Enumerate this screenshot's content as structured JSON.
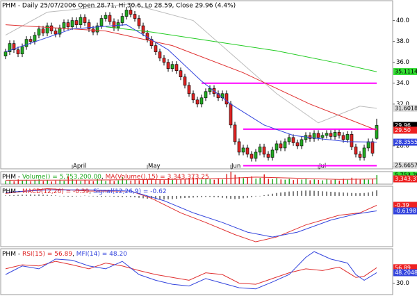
{
  "chart_data": [
    {
      "type": "candlestick",
      "title": "PHM - Daily 25/07/2006 Open 28.71, Hi 30.6, Lo 28.59, Close 29.96 (4.4%)",
      "x_labels": [
        {
          "index": 16,
          "label": "April"
        },
        {
          "index": 34,
          "label": "May"
        },
        {
          "index": 54,
          "label": "Jun"
        },
        {
          "index": 75,
          "label": "Jul"
        }
      ],
      "up_color": "#22aa22",
      "down_color": "#dd2222",
      "ylim": [
        25.8,
        41.9
      ],
      "yticks": [
        {
          "value": 40,
          "label": "40.0"
        },
        {
          "value": 38,
          "label": "38.0"
        },
        {
          "value": 36,
          "label": "36.0"
        },
        {
          "value": 34,
          "label": "34.0"
        },
        {
          "value": 32,
          "label": "32.0"
        },
        {
          "value": 28,
          "label": "28.0"
        },
        {
          "value": 26,
          "label": "26.0"
        }
      ],
      "open": [
        36.6,
        37.0,
        37.8,
        37.2,
        36.8,
        37.5,
        38.2,
        38.0,
        38.6,
        39.2,
        38.8,
        39.5,
        39.0,
        38.7,
        39.3,
        39.8,
        39.4,
        40.0,
        39.6,
        40.3,
        39.8,
        39.2,
        38.9,
        39.5,
        40.2,
        40.5,
        39.9,
        39.3,
        39.8,
        40.4,
        41.0,
        40.6,
        40.2,
        39.5,
        38.8,
        38.2,
        37.6,
        37.0,
        36.4,
        36.0,
        35.4,
        35.8,
        35.2,
        34.6,
        33.8,
        33.0,
        32.4,
        32.0,
        32.6,
        33.2,
        33.5,
        33.0,
        32.6,
        33.0,
        32.0,
        30.0,
        28.4,
        27.4,
        27.8,
        27.2,
        26.8,
        27.4,
        27.9,
        27.2,
        26.9,
        27.6,
        28.2,
        27.8,
        28.4,
        28.8,
        28.3,
        28.0,
        28.6,
        29.0,
        28.7,
        29.2,
        28.8,
        29.0,
        29.2,
        28.9,
        29.3,
        29.0,
        28.6,
        29.1,
        27.9,
        27.2,
        26.9,
        27.8,
        28.4,
        28.71
      ],
      "high": [
        37.3,
        38.1,
        38.1,
        37.5,
        37.8,
        38.5,
        38.5,
        38.9,
        39.5,
        39.5,
        39.8,
        39.8,
        39.3,
        39.6,
        40.1,
        40.1,
        40.3,
        40.3,
        40.6,
        40.6,
        40.1,
        39.5,
        39.8,
        40.5,
        40.8,
        40.8,
        40.2,
        40.1,
        40.7,
        41.3,
        41.3,
        40.9,
        40.5,
        39.8,
        39.1,
        38.5,
        37.9,
        37.3,
        36.7,
        36.3,
        36.1,
        36.1,
        35.5,
        34.9,
        34.1,
        33.3,
        32.7,
        32.9,
        33.5,
        33.8,
        33.8,
        33.3,
        33.3,
        33.3,
        32.3,
        30.3,
        28.7,
        28.1,
        28.1,
        27.5,
        27.7,
        28.2,
        28.2,
        27.5,
        27.9,
        28.5,
        28.5,
        28.7,
        29.1,
        29.1,
        28.6,
        28.9,
        29.3,
        29.3,
        29.5,
        29.5,
        29.3,
        29.5,
        29.5,
        29.6,
        29.6,
        29.3,
        29.4,
        29.4,
        28.2,
        27.5,
        28.1,
        28.7,
        28.7,
        30.6
      ],
      "low": [
        36.3,
        36.7,
        36.9,
        36.5,
        36.5,
        37.2,
        37.7,
        37.7,
        38.3,
        38.5,
        38.5,
        38.7,
        38.4,
        38.4,
        39.0,
        39.1,
        39.1,
        39.3,
        39.3,
        39.5,
        38.9,
        38.6,
        38.6,
        39.2,
        39.9,
        39.6,
        39.0,
        39.0,
        39.5,
        40.1,
        40.3,
        39.9,
        39.2,
        38.5,
        37.9,
        37.3,
        36.7,
        36.1,
        35.7,
        35.1,
        35.1,
        34.9,
        34.3,
        33.5,
        32.7,
        32.1,
        31.7,
        31.7,
        32.3,
        32.9,
        32.7,
        32.3,
        32.3,
        31.7,
        29.7,
        28.1,
        27.1,
        27.1,
        26.9,
        26.5,
        26.5,
        27.1,
        26.9,
        26.6,
        26.6,
        27.3,
        27.5,
        27.5,
        28.1,
        28.0,
        27.7,
        27.7,
        28.3,
        28.4,
        28.4,
        28.5,
        28.5,
        28.7,
        28.6,
        28.6,
        28.7,
        28.3,
        28.3,
        27.6,
        26.9,
        26.6,
        26.6,
        27.5,
        27.0,
        28.59
      ],
      "close": [
        37.0,
        37.8,
        37.2,
        36.8,
        37.5,
        38.2,
        38.0,
        38.6,
        39.2,
        38.8,
        39.5,
        39.0,
        38.7,
        39.3,
        39.8,
        39.4,
        40.0,
        39.6,
        40.3,
        39.8,
        39.2,
        38.9,
        39.5,
        40.2,
        40.5,
        39.9,
        39.3,
        39.8,
        40.4,
        41.0,
        40.6,
        40.2,
        39.5,
        38.8,
        38.2,
        37.6,
        37.0,
        36.4,
        36.0,
        35.4,
        35.8,
        35.2,
        34.6,
        33.8,
        33.0,
        32.4,
        32.0,
        32.6,
        33.2,
        33.5,
        33.0,
        32.6,
        33.0,
        32.0,
        30.0,
        28.4,
        27.4,
        27.8,
        27.2,
        26.8,
        27.4,
        27.9,
        27.2,
        26.9,
        27.6,
        28.2,
        27.8,
        28.4,
        28.8,
        28.3,
        28.0,
        28.6,
        29.0,
        28.7,
        29.2,
        28.8,
        29.0,
        29.2,
        28.9,
        29.3,
        29.0,
        28.6,
        29.1,
        27.9,
        27.2,
        26.9,
        27.8,
        28.4,
        27.3,
        29.96
      ],
      "lines": [
        {
          "color": "#bbbbbb",
          "x": [
            0,
            10,
            20,
            30,
            45,
            55,
            65,
            75,
            85,
            89
          ],
          "values": [
            38.6,
            40.8,
            41.2,
            41.6,
            40.0,
            36.5,
            33.0,
            30.2,
            31.8,
            31.6
          ]
        },
        {
          "color": "#22cc22",
          "x": [
            24,
            35,
            50,
            65,
            80,
            89
          ],
          "values": [
            39.4,
            38.9,
            38.0,
            37.1,
            35.9,
            35.1
          ]
        },
        {
          "color": "#e03030",
          "x": [
            0,
            24,
            40,
            57,
            73,
            89
          ],
          "values": [
            39.6,
            39.0,
            37.6,
            35.0,
            32.0,
            29.5
          ]
        },
        {
          "color": "#3344dd",
          "x": [
            0,
            16,
            29,
            39,
            47,
            54,
            62,
            69,
            75,
            82,
            89
          ],
          "values": [
            37.0,
            39.2,
            39.6,
            37.2,
            34.2,
            32.0,
            30.0,
            29.0,
            28.7,
            28.4,
            28.36
          ]
        }
      ],
      "level_color": "#ff00ff",
      "levels": [
        {
          "value": 34.0,
          "from": 47,
          "to": 89
        },
        {
          "value": 29.6,
          "from": 57,
          "to": 89
        },
        {
          "value": 26.1,
          "from": 57,
          "to": 89
        }
      ],
      "end_labels": [
        {
          "value": 35.1114,
          "color": "#33dd33",
          "text_color": "#000000"
        },
        {
          "value": 31.6018,
          "color": "#dddddd",
          "text_color": "#000000"
        },
        {
          "value": 29.96,
          "color": "#000000",
          "text_color": "#ffffff"
        },
        {
          "value": 29.5,
          "label": "29.50",
          "color": "#ee2222",
          "text_color": "#ffffff"
        },
        {
          "value": 28.3555,
          "color": "#3344dd",
          "text_color": "#ffffff"
        },
        {
          "value": 25.6657,
          "color": "#dddddd",
          "text_color": "#000000"
        }
      ]
    },
    {
      "type": "bar",
      "title_parts": [
        {
          "text": "PHM - ",
          "color": "#000000"
        },
        {
          "text": "Volume() = 5,753,200.00",
          "color": "#22aa22"
        },
        {
          "text": ", ",
          "color": "#000000"
        },
        {
          "text": "MA(Volume(),15) = 3,343,373.25",
          "color": "#dd2222"
        }
      ],
      "ylim": [
        0,
        8000000
      ],
      "values": [
        2100000.0,
        2500000.0,
        1800000.0,
        3000000.0,
        2200000.0,
        2800000.0,
        1900000.0,
        2400000.0,
        3100000.0,
        2000000.0,
        2600000.0,
        1700000.0,
        2300000.0,
        2900000.0,
        2100000.0,
        5000000.0,
        3200000.0,
        2400000.0,
        2000000.0,
        2700000.0,
        2200000.0,
        1900000.0,
        3500000.0,
        2600000.0,
        2100000.0,
        2800000.0,
        2000000.0,
        2400000.0,
        4500000.0,
        2900000.0,
        2300000.0,
        3000000.0,
        2500000.0,
        3300000.0,
        2700000.0,
        3600000.0,
        2900000.0,
        3100000.0,
        2600000.0,
        4000000.0,
        2800000.0,
        3200000.0,
        3500000.0,
        3000000.0,
        3800000.0,
        4200000.0,
        3300000.0,
        2900000.0,
        3600000.0,
        3100000.0,
        2800000.0,
        3400000.0,
        3000000.0,
        6500000.0,
        7800000.0,
        6000000.0,
        4500000.0,
        3800000.0,
        4200000.0,
        5000000.0,
        3600000.0,
        4000000.0,
        6200000.0,
        3500000.0,
        3200000.0,
        3900000.0,
        3000000.0,
        2800000.0,
        3400000.0,
        2600000.0,
        3100000.0,
        2900000.0,
        3300000.0,
        2500000.0,
        3000000.0,
        2700000.0,
        2400000.0,
        3200000.0,
        2600000.0,
        2900000.0,
        2300000.0,
        3500000.0,
        2800000.0,
        4100000.0,
        3600000.0,
        3000000.0,
        3300000.0,
        2900000.0,
        3100000.0,
        5753200
      ],
      "lines": [
        {
          "color": "#e03030",
          "x": [
            0,
            20,
            40,
            54,
            60,
            70,
            80,
            89
          ],
          "values": [
            2500000.0,
            2600000.0,
            3000000.0,
            3800000.0,
            4500000.0,
            3800000.0,
            3000000.0,
            3343373.25
          ]
        }
      ],
      "end_labels": [
        {
          "value": 5753200,
          "label": "5,753,200",
          "color": "#33dd33",
          "text_color": "#000000"
        },
        {
          "value": 3343373.25,
          "label": "3,343,373",
          "color": "#ee2222",
          "text_color": "#ffffff"
        }
      ]
    },
    {
      "type": "line",
      "title_parts": [
        {
          "text": "PHM - ",
          "color": "#000000"
        },
        {
          "text": "MACD(12,26) = -0.39",
          "color": "#dd2222"
        },
        {
          "text": ", ",
          "color": "#000000"
        },
        {
          "text": "Signal(12,26,9) = -0.62",
          "color": "#3344dd"
        }
      ],
      "ylim": [
        -2.1,
        0.4
      ],
      "histogram_color": "#000000",
      "values": [
        0.02,
        0.03,
        0.03,
        0.04,
        0.05,
        0.05,
        0.06,
        0.05,
        0.06,
        0.05,
        0.04,
        0.03,
        0.02,
        0.0,
        -0.02,
        -0.03,
        -0.03,
        -0.02,
        0.0,
        0.01,
        0.0,
        -0.02,
        -0.03,
        -0.04,
        -0.03,
        -0.02,
        -0.03,
        -0.04,
        -0.05,
        -0.04,
        -0.05,
        -0.06,
        -0.08,
        -0.1,
        -0.12,
        -0.13,
        -0.14,
        -0.14,
        -0.15,
        -0.14,
        -0.13,
        -0.12,
        -0.1,
        -0.09,
        -0.08,
        -0.07,
        -0.06,
        -0.05,
        -0.04,
        -0.04,
        -0.05,
        -0.06,
        -0.08,
        -0.1,
        -0.12,
        -0.13,
        -0.12,
        -0.1,
        -0.08,
        -0.05,
        -0.02,
        0.0,
        0.03,
        0.06,
        0.09,
        0.12,
        0.14,
        0.16,
        0.18,
        0.19,
        0.2,
        0.21,
        0.22,
        0.22,
        0.21,
        0.2,
        0.19,
        0.18,
        0.17,
        0.16,
        0.15,
        0.14,
        0.13,
        0.12,
        0.11,
        0.11,
        0.12,
        0.14,
        0.18,
        0.23
      ],
      "lines": [
        {
          "color": "#e03030",
          "x": [
            0,
            10,
            20,
            30,
            35,
            42,
            48,
            55,
            60,
            65,
            72,
            80,
            85,
            89
          ],
          "values": [
            0.1,
            0.3,
            0.2,
            0.2,
            -0.1,
            -0.7,
            -1.1,
            -1.6,
            -1.9,
            -1.7,
            -1.2,
            -0.8,
            -0.7,
            -0.39
          ]
        },
        {
          "color": "#3344dd",
          "x": [
            0,
            10,
            20,
            30,
            38,
            45,
            52,
            58,
            64,
            70,
            78,
            84,
            89
          ],
          "values": [
            0.15,
            0.25,
            0.25,
            0.2,
            -0.2,
            -0.7,
            -1.1,
            -1.5,
            -1.7,
            -1.5,
            -1.0,
            -0.75,
            -0.62
          ]
        }
      ],
      "end_labels": [
        {
          "value": -0.39,
          "color": "#ee2222",
          "text_color": "#ffffff"
        },
        {
          "value": -0.6198,
          "color": "#3344dd",
          "text_color": "#ffffff"
        }
      ]
    },
    {
      "type": "line",
      "title_parts": [
        {
          "text": "PHM - ",
          "color": "#000000"
        },
        {
          "text": "RSI(15) = 56.89",
          "color": "#dd2222"
        },
        {
          "text": ", ",
          "color": "#000000"
        },
        {
          "text": "MFI(14) = 48.20",
          "color": "#3344dd"
        }
      ],
      "ylim": [
        10,
        90
      ],
      "yticks": [
        {
          "value": 30,
          "label": "30.0"
        }
      ],
      "lines": [
        {
          "color": "#e03030",
          "x": [
            0,
            4,
            8,
            12,
            16,
            20,
            24,
            28,
            32,
            36,
            40,
            44,
            48,
            52,
            56,
            60,
            64,
            68,
            72,
            76,
            80,
            84,
            86,
            89
          ],
          "values": [
            55,
            62,
            60,
            68,
            62,
            55,
            65,
            60,
            52,
            45,
            40,
            35,
            48,
            45,
            30,
            28,
            38,
            48,
            55,
            52,
            58,
            40,
            42,
            56.89
          ]
        },
        {
          "color": "#3344dd",
          "x": [
            0,
            4,
            8,
            12,
            16,
            20,
            24,
            28,
            32,
            36,
            40,
            44,
            48,
            52,
            56,
            60,
            64,
            68,
            72,
            74,
            78,
            82,
            84,
            86,
            89
          ],
          "values": [
            45,
            60,
            55,
            72,
            70,
            60,
            55,
            68,
            45,
            35,
            28,
            25,
            38,
            30,
            22,
            20,
            32,
            45,
            75,
            85,
            72,
            65,
            45,
            35,
            48.2
          ]
        }
      ],
      "end_labels": [
        {
          "value": 56.89,
          "color": "#ee2222",
          "text_color": "#ffffff"
        },
        {
          "value": 48.2048,
          "color": "#3344dd",
          "text_color": "#ffffff"
        }
      ]
    }
  ]
}
